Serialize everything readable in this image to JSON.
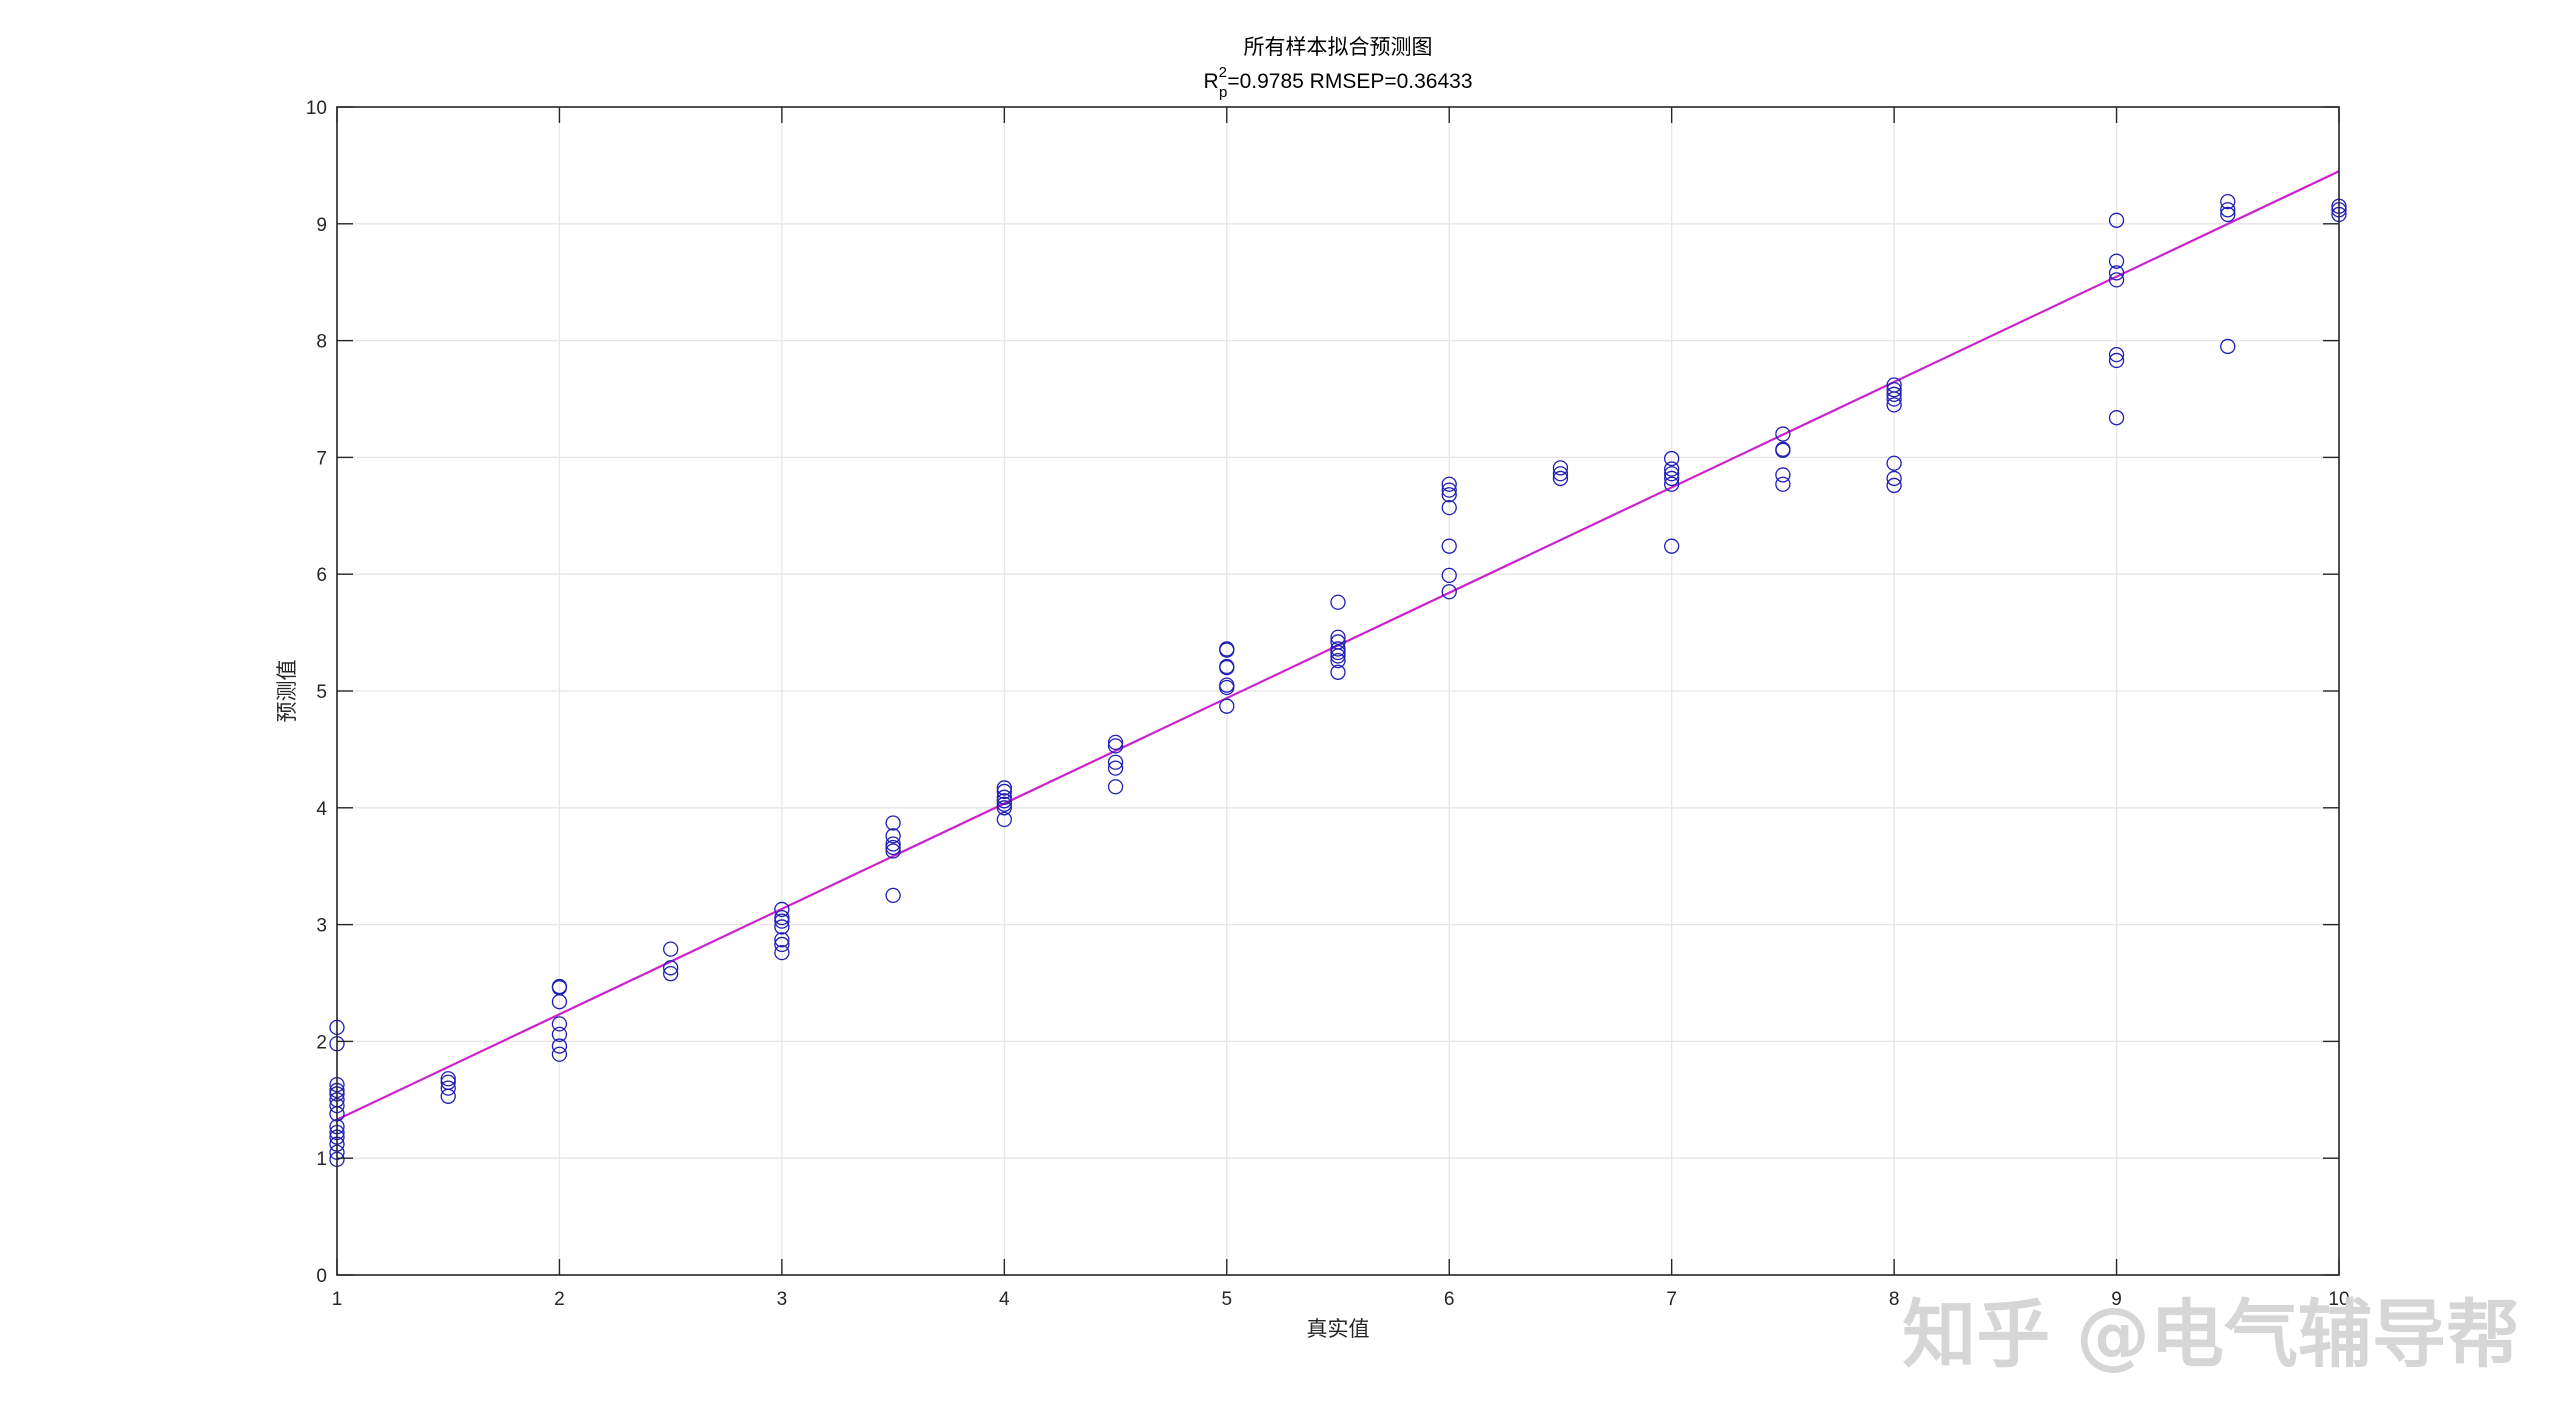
{
  "chart_data": {
    "type": "scatter",
    "title": "所有样本拟合预测图",
    "subtitle": {
      "r_symbol": "R",
      "superscript": "2",
      "subscript": "p",
      "rest": "=0.9785  RMSEP=0.36433"
    },
    "xlabel": "真实值",
    "ylabel": "预测值",
    "xlim": [
      1,
      10
    ],
    "ylim": [
      0,
      10
    ],
    "xticks": [
      "1",
      "2",
      "3",
      "4",
      "5",
      "6",
      "7",
      "8",
      "9",
      "10"
    ],
    "yticks": [
      "0",
      "1",
      "2",
      "3",
      "4",
      "5",
      "6",
      "7",
      "8",
      "9",
      "10"
    ],
    "grid": true,
    "colors": {
      "marker": "#1f1fb4",
      "fit_line": "#cc22cc",
      "grid": "#e6e6e6",
      "axis": "#262626"
    },
    "fit_line": {
      "x": [
        1,
        10
      ],
      "y": [
        1.33,
        9.45
      ]
    },
    "points": [
      [
        1,
        2.12
      ],
      [
        1,
        1.98
      ],
      [
        1,
        1.63
      ],
      [
        1,
        1.58
      ],
      [
        1,
        1.55
      ],
      [
        1,
        1.5
      ],
      [
        1,
        1.45
      ],
      [
        1,
        1.38
      ],
      [
        1,
        1.27
      ],
      [
        1,
        1.22
      ],
      [
        1,
        1.18
      ],
      [
        1,
        1.12
      ],
      [
        1,
        1.05
      ],
      [
        1,
        0.99
      ],
      [
        1.5,
        1.68
      ],
      [
        1.5,
        1.65
      ],
      [
        1.5,
        1.6
      ],
      [
        1.5,
        1.53
      ],
      [
        2,
        2.47
      ],
      [
        2,
        2.46
      ],
      [
        2,
        2.34
      ],
      [
        2,
        2.15
      ],
      [
        2,
        2.06
      ],
      [
        2,
        1.96
      ],
      [
        2,
        1.89
      ],
      [
        2.5,
        2.79
      ],
      [
        2.5,
        2.63
      ],
      [
        2.5,
        2.58
      ],
      [
        3,
        3.13
      ],
      [
        3,
        3.06
      ],
      [
        3,
        3.03
      ],
      [
        3,
        2.98
      ],
      [
        3,
        2.87
      ],
      [
        3,
        2.83
      ],
      [
        3,
        2.76
      ],
      [
        3.5,
        3.87
      ],
      [
        3.5,
        3.76
      ],
      [
        3.5,
        3.69
      ],
      [
        3.5,
        3.66
      ],
      [
        3.5,
        3.63
      ],
      [
        3.5,
        3.25
      ],
      [
        4,
        4.17
      ],
      [
        4,
        4.14
      ],
      [
        4,
        4.09
      ],
      [
        4,
        4.06
      ],
      [
        4,
        4.03
      ],
      [
        4,
        4.0
      ],
      [
        4,
        3.9
      ],
      [
        4.5,
        4.56
      ],
      [
        4.5,
        4.53
      ],
      [
        4.5,
        4.39
      ],
      [
        4.5,
        4.34
      ],
      [
        4.5,
        4.18
      ],
      [
        5,
        5.36
      ],
      [
        5,
        5.35
      ],
      [
        5,
        5.21
      ],
      [
        5,
        5.2
      ],
      [
        5,
        5.05
      ],
      [
        5,
        5.03
      ],
      [
        5,
        4.87
      ],
      [
        5.5,
        5.76
      ],
      [
        5.5,
        5.46
      ],
      [
        5.5,
        5.42
      ],
      [
        5.5,
        5.36
      ],
      [
        5.5,
        5.33
      ],
      [
        5.5,
        5.3
      ],
      [
        5.5,
        5.26
      ],
      [
        5.5,
        5.16
      ],
      [
        6,
        6.77
      ],
      [
        6,
        6.72
      ],
      [
        6,
        6.68
      ],
      [
        6,
        6.57
      ],
      [
        6,
        6.24
      ],
      [
        6,
        5.99
      ],
      [
        6,
        5.85
      ],
      [
        6.5,
        6.91
      ],
      [
        6.5,
        6.86
      ],
      [
        6.5,
        6.82
      ],
      [
        7,
        6.99
      ],
      [
        7,
        6.9
      ],
      [
        7,
        6.86
      ],
      [
        7,
        6.82
      ],
      [
        7,
        6.77
      ],
      [
        7,
        6.24
      ],
      [
        7.5,
        7.2
      ],
      [
        7.5,
        7.07
      ],
      [
        7.5,
        7.06
      ],
      [
        7.5,
        6.85
      ],
      [
        7.5,
        6.77
      ],
      [
        8,
        7.62
      ],
      [
        8,
        7.58
      ],
      [
        8,
        7.54
      ],
      [
        8,
        7.5
      ],
      [
        8,
        7.45
      ],
      [
        8,
        6.95
      ],
      [
        8,
        6.82
      ],
      [
        8,
        6.76
      ],
      [
        9,
        9.03
      ],
      [
        9,
        8.68
      ],
      [
        9,
        8.58
      ],
      [
        9,
        8.52
      ],
      [
        9,
        7.88
      ],
      [
        9,
        7.83
      ],
      [
        9,
        7.34
      ],
      [
        9.5,
        9.19
      ],
      [
        9.5,
        9.12
      ],
      [
        9.5,
        9.08
      ],
      [
        9.5,
        7.95
      ],
      [
        10,
        9.15
      ],
      [
        10,
        9.12
      ],
      [
        10,
        9.08
      ]
    ]
  },
  "watermark": {
    "text": "知乎 @电气辅导帮",
    "color": "#d4d4d4"
  }
}
